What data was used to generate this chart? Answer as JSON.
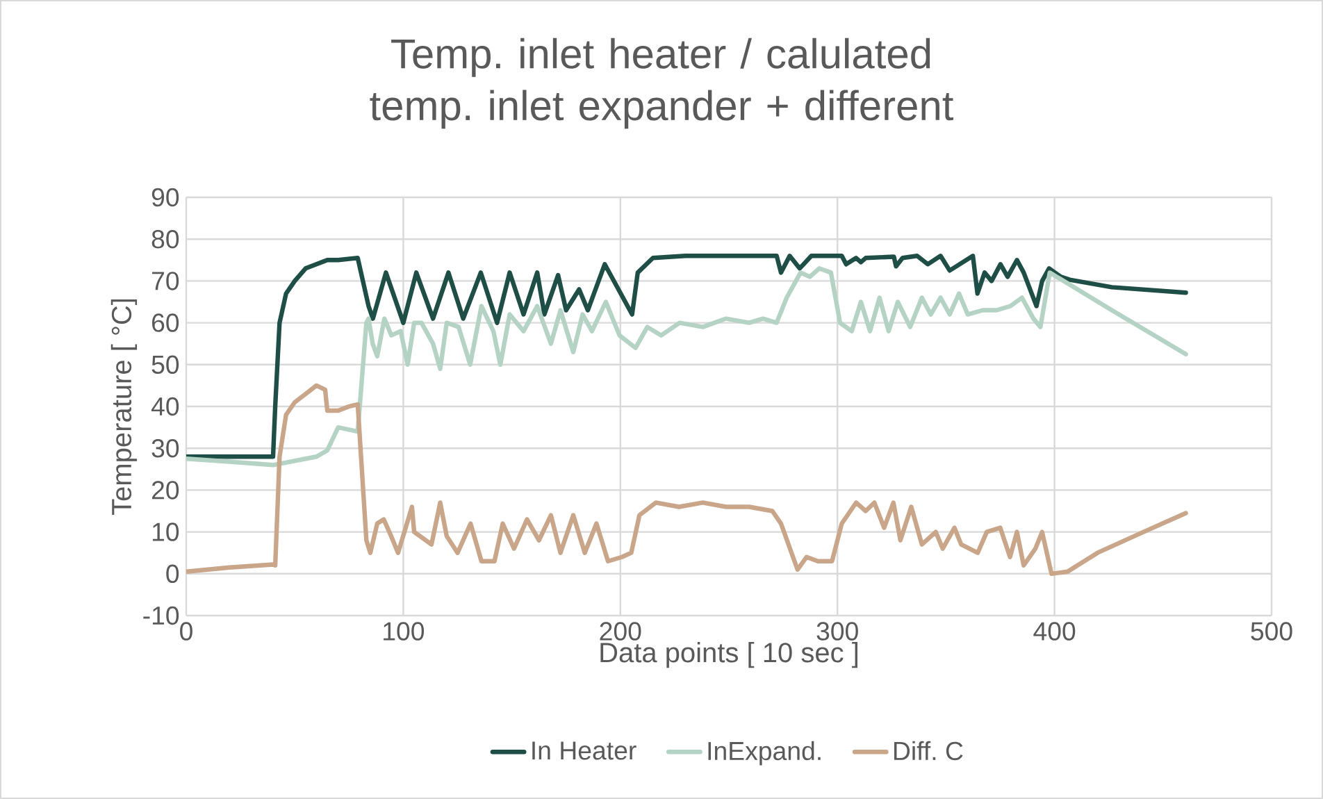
{
  "chart_data": {
    "type": "line",
    "title": "Temp. inlet heater / calulated temp. inlet expander + different",
    "xlabel": "Data points [ 10 sec ]",
    "ylabel": "Temperature [ °C]",
    "xlim": [
      0,
      500
    ],
    "xticks": [
      0,
      100,
      200,
      300,
      400,
      500
    ],
    "ylim": [
      -10,
      90
    ],
    "yticks": [
      -10,
      0,
      10,
      20,
      30,
      40,
      50,
      60,
      70,
      80,
      90
    ],
    "grid": true,
    "legend": "bottom",
    "series": [
      {
        "name": "In Heater",
        "color": "#1f4e47",
        "x": [
          0,
          20,
          40,
          41,
          43,
          46,
          50,
          55,
          60,
          65,
          70,
          79,
          84,
          86,
          92,
          100,
          106,
          113.7,
          120.8,
          127.6,
          135.7,
          143.2,
          149,
          155.4,
          161.7,
          165,
          171.3,
          175,
          181,
          185,
          192.8,
          205.4,
          208,
          215,
          230,
          272,
          274,
          278,
          282.6,
          288,
          302,
          304,
          308.6,
          310.8,
          313,
          326,
          327,
          330,
          336.7,
          341.6,
          347.5,
          351.7,
          362.4,
          364.5,
          367.8,
          371,
          375.1,
          378.4,
          382.7,
          385.8,
          391.7,
          394.3,
          397.5,
          402.9,
          407,
          426.4,
          460.5
        ],
        "values": [
          28,
          28,
          28,
          40,
          60,
          67,
          70,
          73,
          74,
          75,
          75,
          75.5,
          64,
          61,
          72,
          60,
          72,
          61,
          72,
          61,
          72,
          60,
          72,
          62,
          72,
          62,
          71.4,
          63,
          68,
          63,
          74,
          62,
          72,
          75.5,
          76,
          76,
          72,
          76,
          73,
          76,
          76,
          74,
          75.5,
          74.5,
          75.5,
          75.8,
          73.5,
          75.5,
          76,
          74,
          76,
          72.5,
          76,
          67,
          72,
          70,
          74,
          71,
          75,
          72,
          64,
          70,
          73,
          71,
          70.3,
          68.5,
          67.2
        ]
      },
      {
        "name": "InExpand.",
        "color": "#b5d3c4",
        "x": [
          0,
          20,
          40,
          50,
          60,
          65,
          70,
          79,
          83,
          84,
          85.9,
          88,
          91.3,
          94.5,
          98.8,
          102,
          105,
          108.4,
          113.7,
          117,
          120,
          125.5,
          130.8,
          136,
          141.5,
          144.7,
          149,
          155.4,
          161.7,
          168,
          172.4,
          178.3,
          182.6,
          186.9,
          193.3,
          199.6,
          207,
          212.4,
          218.8,
          227.3,
          238,
          248.7,
          259.3,
          265.7,
          272,
          276.6,
          283,
          287.3,
          291.6,
          297,
          301.2,
          306.6,
          310.8,
          315,
          319.4,
          323.6,
          327.8,
          333.5,
          338.9,
          343,
          347.5,
          351.7,
          356,
          360,
          366.9,
          373.3,
          379.7,
          385,
          390.3,
          393.5,
          397.8,
          401,
          426.4,
          460.5
        ],
        "values": [
          27.5,
          26.8,
          26,
          27,
          28,
          29.5,
          35,
          34,
          60,
          61,
          55,
          52,
          61,
          57,
          58,
          50,
          60,
          60,
          55,
          49,
          60,
          59,
          50,
          64,
          58,
          50,
          62,
          58,
          64,
          55,
          63,
          53,
          62,
          58,
          65,
          57,
          54,
          59,
          57,
          60,
          59,
          61,
          60,
          61,
          60,
          66,
          72,
          71,
          73,
          72,
          60,
          58,
          65,
          58,
          66,
          58,
          65,
          59,
          66,
          62,
          66,
          62,
          67,
          62,
          63,
          63,
          64,
          66,
          61,
          59,
          72,
          71,
          63,
          52.5
        ]
      },
      {
        "name": "Diff. C",
        "color": "#c9a58a",
        "x": [
          0,
          20,
          40,
          41,
          43,
          46,
          50,
          55,
          60,
          64,
          65,
          70,
          75,
          79,
          83,
          84.8,
          88,
          91,
          94.4,
          97.6,
          104,
          105,
          113,
          117,
          120,
          125,
          131,
          136,
          142,
          145.8,
          151,
          157,
          162.5,
          168,
          172.4,
          178.3,
          183.6,
          189,
          194.3,
          200.7,
          205,
          208.8,
          216.3,
          227,
          238,
          248.7,
          259.3,
          270,
          274,
          281.6,
          285.8,
          291,
          297.5,
          302,
          308.6,
          313,
          317,
          321.5,
          325.8,
          329,
          334,
          338.9,
          345.3,
          348.5,
          353.9,
          357,
          364.6,
          368.8,
          375,
          379.5,
          382.7,
          385.8,
          391.2,
          394.3,
          398.6,
          406,
          419.8,
          441,
          460.5
        ],
        "values": [
          0.5,
          1.5,
          2.2,
          2,
          28,
          38,
          41,
          43,
          45,
          44,
          39,
          39,
          40,
          40.5,
          8,
          5,
          12,
          13,
          9,
          5,
          16,
          10,
          7,
          17,
          9,
          5,
          12,
          3,
          3,
          12,
          6,
          13,
          8,
          14,
          5,
          14,
          5,
          12,
          3,
          4,
          5,
          14,
          17,
          16,
          17,
          16,
          16,
          15,
          12,
          1,
          4,
          3,
          3,
          12,
          17,
          15,
          17,
          11,
          17,
          8,
          16,
          7,
          10,
          6,
          11,
          7,
          5,
          10,
          11,
          4,
          10,
          2,
          6,
          10,
          0,
          0.5,
          5,
          10,
          14.5
        ]
      }
    ]
  }
}
